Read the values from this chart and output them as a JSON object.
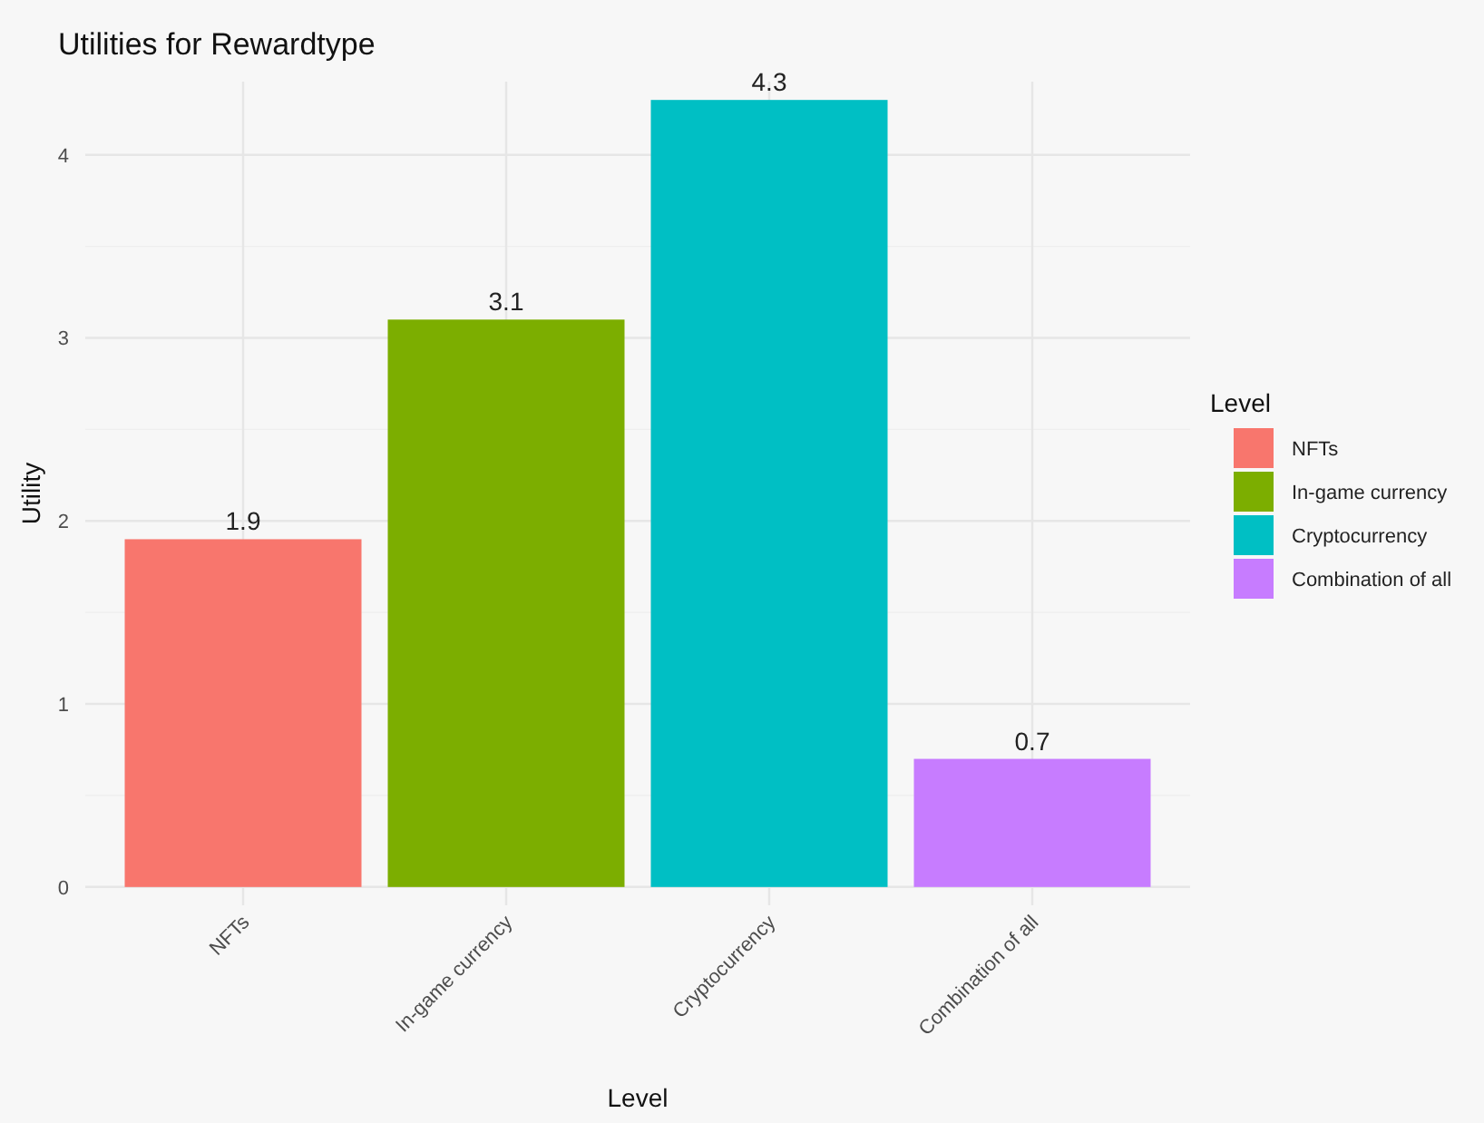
{
  "chart_data": {
    "type": "bar",
    "title": "Utilities for Rewardtype",
    "xlabel": "Level",
    "ylabel": "Utility",
    "legend_title": "Level",
    "categories": [
      "NFTs",
      "In-game currency",
      "Cryptocurrency",
      "Combination of all"
    ],
    "series": [
      {
        "name": "NFTs",
        "color": "#f8766d",
        "values": [
          1.9,
          null,
          null,
          null
        ]
      },
      {
        "name": "In-game currency",
        "color": "#7cae00",
        "values": [
          null,
          3.1,
          null,
          null
        ]
      },
      {
        "name": "Cryptocurrency",
        "color": "#00bfc4",
        "values": [
          null,
          null,
          4.3,
          null
        ]
      },
      {
        "name": "Combination of all",
        "color": "#c77cff",
        "values": [
          null,
          null,
          null,
          0.7
        ]
      }
    ],
    "stacked": true,
    "ylim": [
      -0.1,
      4.4
    ],
    "yticks": [
      0,
      1,
      2,
      3,
      4
    ],
    "grid": true,
    "legend": "right",
    "data_labels": true
  }
}
